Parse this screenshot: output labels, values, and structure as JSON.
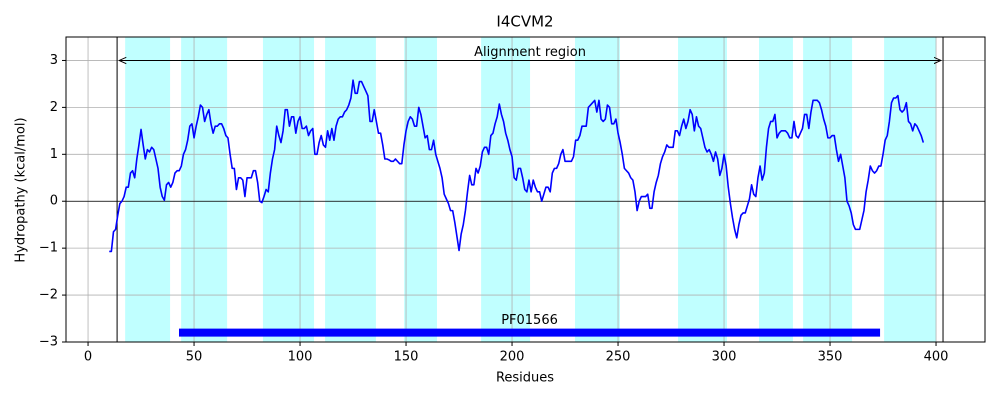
{
  "chart_data": {
    "type": "line",
    "title": "I4CVM2",
    "x_label": "Residues",
    "y_label": "Hydropathy (kcal/mol)",
    "xlim": [
      -10.4,
      423.1
    ],
    "ylim": [
      -3,
      3.5
    ],
    "xticks": [
      0,
      50,
      100,
      150,
      200,
      250,
      300,
      350,
      400
    ],
    "yticks": [
      {
        "value": -3,
        "label": "−3"
      },
      {
        "value": -2,
        "label": "−2"
      },
      {
        "value": -1,
        "label": "−1"
      },
      0,
      1,
      2,
      3
    ],
    "grid": true,
    "spans_color": "#c0ffff",
    "spans": [
      [
        17.5,
        38.7
      ],
      [
        43.9,
        65.6
      ],
      [
        82.5,
        106.6
      ],
      [
        111.8,
        135.8
      ],
      [
        149.1,
        164.6
      ],
      [
        185.4,
        208.5
      ],
      [
        229.7,
        250.9
      ],
      [
        278.3,
        301.4
      ],
      [
        316.5,
        332.5
      ],
      [
        337.3,
        360.4
      ],
      [
        375.5,
        400
      ]
    ],
    "hline": 0,
    "vlines": [
      13.7,
      403.3
    ],
    "arrow": {
      "label": "Alignment region",
      "x": [
        13.7,
        403.3
      ],
      "y": 3
    },
    "domain": {
      "label": "PF01566",
      "x": [
        42.9,
        373.6
      ],
      "y": -2.8,
      "color": "#0000ff"
    },
    "series": [
      {
        "color": "#0000ff",
        "x": [
          10,
          11,
          12,
          13,
          14,
          15,
          16,
          17,
          18,
          19,
          20,
          21,
          22,
          23,
          24,
          25,
          26,
          27,
          28,
          29,
          30,
          31,
          32,
          33,
          34,
          35,
          36,
          37,
          38,
          39,
          40,
          41,
          42,
          43,
          44,
          45,
          46,
          47,
          48,
          49,
          50,
          51,
          52,
          53,
          54,
          55,
          56,
          57,
          58,
          59,
          60,
          61,
          62,
          63,
          64,
          65,
          66,
          67,
          68,
          69,
          70,
          71,
          72,
          73,
          74,
          75,
          76,
          77,
          78,
          79,
          80,
          81,
          82,
          83,
          84,
          85,
          86,
          87,
          88,
          89,
          90,
          91,
          92,
          93,
          94,
          95,
          96,
          97,
          98,
          99,
          100,
          101,
          102,
          103,
          104,
          105,
          106,
          107,
          108,
          109,
          110,
          111,
          112,
          113,
          114,
          115,
          116,
          117,
          118,
          119,
          120,
          121,
          122,
          123,
          124,
          125,
          126,
          127,
          128,
          129,
          130,
          131,
          132,
          133,
          134,
          135,
          136,
          137,
          138,
          139,
          140,
          141,
          142,
          143,
          144,
          145,
          146,
          147,
          148,
          149,
          150,
          151,
          152,
          153,
          154,
          155,
          156,
          157,
          158,
          159,
          160,
          161,
          162,
          163,
          164,
          165,
          166,
          167,
          168,
          169,
          170,
          171,
          172,
          173,
          174,
          175,
          176,
          177,
          178,
          179,
          180,
          181,
          182,
          183,
          184,
          185,
          186,
          187,
          188,
          189,
          190,
          191,
          192,
          193,
          194,
          195,
          196,
          197,
          198,
          199,
          200,
          201,
          202,
          203,
          204,
          205,
          206,
          207,
          208,
          209,
          210,
          211,
          212,
          213,
          214,
          215,
          216,
          217,
          218,
          219,
          220,
          221,
          222,
          223,
          224,
          225,
          226,
          227,
          228,
          229,
          230,
          231,
          232,
          233,
          234,
          235,
          236,
          237,
          238,
          239,
          240,
          241,
          242,
          243,
          244,
          245,
          246,
          247,
          248,
          249,
          250,
          251,
          252,
          253,
          254,
          255,
          256,
          257,
          258,
          259,
          260,
          261,
          262,
          263,
          264,
          265,
          266,
          267,
          268,
          269,
          270,
          271,
          272,
          273,
          274,
          275,
          276,
          277,
          278,
          279,
          280,
          281,
          282,
          283,
          284,
          285,
          286,
          287,
          288,
          289,
          290,
          291,
          292,
          293,
          294,
          295,
          296,
          297,
          298,
          299,
          300,
          301,
          302,
          303,
          304,
          305,
          306,
          307,
          308,
          309,
          310,
          311,
          312,
          313,
          314,
          315,
          316,
          317,
          318,
          319,
          320,
          321,
          322,
          323,
          324,
          325,
          326,
          327,
          328,
          329,
          330,
          331,
          332,
          333,
          334,
          335,
          336,
          337,
          338,
          339,
          340,
          341,
          342,
          343,
          344,
          345,
          346,
          347,
          348,
          349,
          350,
          351,
          352,
          353,
          354,
          355,
          356,
          357,
          358,
          359,
          360,
          361,
          362,
          363,
          364,
          365,
          366,
          367,
          368,
          369,
          370,
          371,
          372,
          373,
          374,
          375,
          376,
          377,
          378,
          379,
          380,
          381,
          382,
          383,
          384,
          385,
          386,
          387,
          388,
          389,
          390,
          391,
          392,
          393,
          394
        ],
        "values": [
          -1.07,
          -1.07,
          -0.65,
          -0.6,
          -0.3,
          -0.05,
          0,
          0.1,
          0.3,
          0.3,
          0.6,
          0.65,
          0.5,
          0.9,
          1.2,
          1.53,
          1.2,
          0.9,
          1.1,
          1.05,
          1.15,
          1.1,
          0.9,
          0.7,
          0.3,
          0.1,
          0.02,
          0.35,
          0.4,
          0.3,
          0.4,
          0.6,
          0.65,
          0.65,
          0.75,
          1.0,
          1.1,
          1.3,
          1.6,
          1.65,
          1.35,
          1.6,
          1.8,
          2.05,
          2.0,
          1.7,
          1.85,
          1.95,
          1.65,
          1.45,
          1.6,
          1.6,
          1.65,
          1.65,
          1.55,
          1.4,
          1.35,
          1.0,
          0.7,
          0.7,
          0.25,
          0.5,
          0.5,
          0.45,
          0.1,
          0.5,
          0.5,
          0.5,
          0.65,
          0.65,
          0.4,
          0.0,
          -0.03,
          0.1,
          0.25,
          0.2,
          0.6,
          0.9,
          1.1,
          1.6,
          1.4,
          1.25,
          1.5,
          1.95,
          1.95,
          1.6,
          1.8,
          1.8,
          1.45,
          1.7,
          1.8,
          1.55,
          1.55,
          1.6,
          1.4,
          1.5,
          1.55,
          1.0,
          1.0,
          1.25,
          1.4,
          1.2,
          1.15,
          1.5,
          1.3,
          1.55,
          1.3,
          1.6,
          1.75,
          1.8,
          1.8,
          1.9,
          1.95,
          2.05,
          2.2,
          2.58,
          2.3,
          2.3,
          2.55,
          2.55,
          2.45,
          2.35,
          2.25,
          1.7,
          1.7,
          1.95,
          1.7,
          1.45,
          1.45,
          1.2,
          0.9,
          0.9,
          0.88,
          0.85,
          0.85,
          0.9,
          0.85,
          0.8,
          0.8,
          1.2,
          1.5,
          1.7,
          1.8,
          1.75,
          1.6,
          1.6,
          2.0,
          1.85,
          1.6,
          1.35,
          1.4,
          1.1,
          1.1,
          1.3,
          1.0,
          0.85,
          0.7,
          0.5,
          0.15,
          0.05,
          -0.05,
          -0.2,
          -0.2,
          -0.45,
          -0.75,
          -1.05,
          -0.7,
          -0.5,
          -0.2,
          0.2,
          0.55,
          0.35,
          0.35,
          0.7,
          0.6,
          0.75,
          1.05,
          1.15,
          1.15,
          1.0,
          1.4,
          1.45,
          1.65,
          1.8,
          2.07,
          1.85,
          1.7,
          1.45,
          1.3,
          1.1,
          0.95,
          0.5,
          0.45,
          0.7,
          0.7,
          0.5,
          0.25,
          0.2,
          0.45,
          0.2,
          0.45,
          0.3,
          0.2,
          0.2,
          0.0,
          0.15,
          0.3,
          0.3,
          0.2,
          0.6,
          0.7,
          0.7,
          0.8,
          1.0,
          1.1,
          0.85,
          0.85,
          0.85,
          0.85,
          0.95,
          1.3,
          1.3,
          1.4,
          1.6,
          1.6,
          1.6,
          2.0,
          2.05,
          2.1,
          2.15,
          1.9,
          2.15,
          1.75,
          1.7,
          1.75,
          2.05,
          2.0,
          1.65,
          1.65,
          1.75,
          1.45,
          1.25,
          1.0,
          0.7,
          0.65,
          0.6,
          0.5,
          0.45,
          0.2,
          -0.2,
          0.0,
          0.1,
          0.1,
          0.1,
          0.15,
          -0.15,
          -0.15,
          0.2,
          0.4,
          0.55,
          0.8,
          0.95,
          1.05,
          1.2,
          1.15,
          1.15,
          1.15,
          1.5,
          1.5,
          1.4,
          1.6,
          1.75,
          1.55,
          1.7,
          1.95,
          1.85,
          1.5,
          1.8,
          1.6,
          1.55,
          1.35,
          1.15,
          1.05,
          1.1,
          1.0,
          0.85,
          1.05,
          0.9,
          0.55,
          0.7,
          1.0,
          0.75,
          0.3,
          -0.05,
          -0.35,
          -0.6,
          -0.78,
          -0.5,
          -0.3,
          -0.25,
          -0.25,
          -0.1,
          0.05,
          0.35,
          0.15,
          0.1,
          0.5,
          0.75,
          0.45,
          0.6,
          1.15,
          1.55,
          1.7,
          1.7,
          1.85,
          1.35,
          1.45,
          1.5,
          1.5,
          1.5,
          1.45,
          1.35,
          1.35,
          1.7,
          1.4,
          1.35,
          1.45,
          1.55,
          1.85,
          1.85,
          1.55,
          1.9,
          2.15,
          2.15,
          2.15,
          2.1,
          1.95,
          1.75,
          1.6,
          1.35,
          1.35,
          1.4,
          1.4,
          1.1,
          0.85,
          1.0,
          0.75,
          0.5,
          0.0,
          -0.1,
          -0.25,
          -0.5,
          -0.6,
          -0.6,
          -0.6,
          -0.4,
          -0.2,
          0.2,
          0.45,
          0.75,
          0.65,
          0.6,
          0.65,
          0.75,
          0.75,
          1.0,
          1.3,
          1.4,
          1.7,
          2.1,
          2.2,
          2.2,
          2.25,
          1.95,
          1.9,
          1.95,
          2.1,
          1.7,
          1.65,
          1.5,
          1.65,
          1.6,
          1.5,
          1.4,
          1.25
        ]
      }
    ]
  }
}
